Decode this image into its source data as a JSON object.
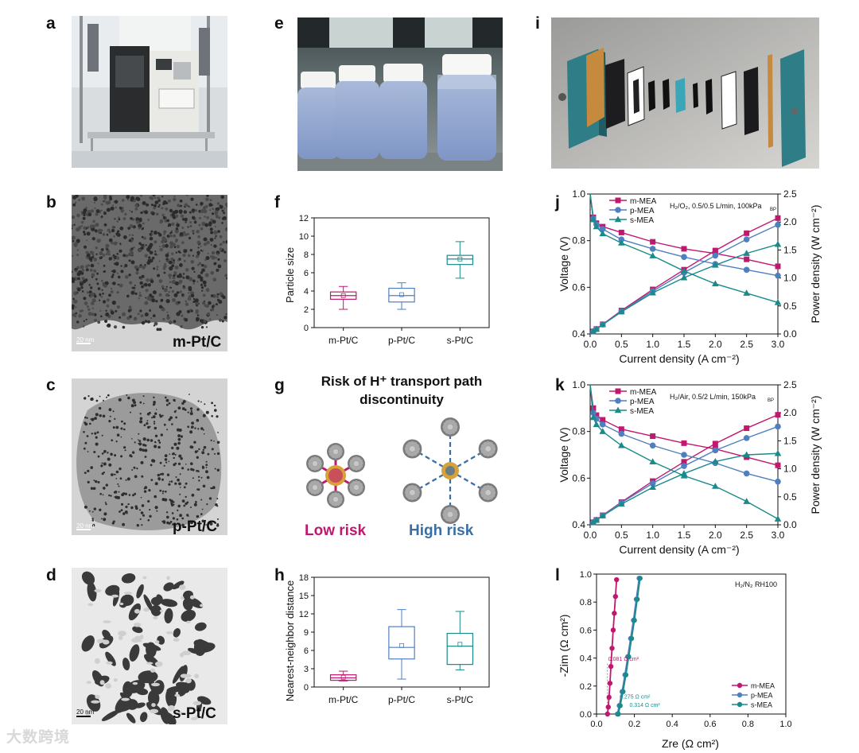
{
  "panel_labels": {
    "a": "a",
    "b": "b",
    "c": "c",
    "d": "d",
    "e": "e",
    "f": "f",
    "g": "g",
    "h": "h",
    "i": "i",
    "j": "j",
    "k": "k",
    "l": "l"
  },
  "micrographs": {
    "b": {
      "tag": "m-Pt/C",
      "scale": "20 nm"
    },
    "c": {
      "tag": "p-Pt/C",
      "scale": "20 nm"
    },
    "d": {
      "tag": "s-Pt/C",
      "scale": "20 nm"
    }
  },
  "schematic_g": {
    "title_line1": "Risk of H⁺ transport path",
    "title_line2": "discontinuity",
    "low_label": "Low risk",
    "high_label": "High risk",
    "low_color": "#c0176f",
    "high_color": "#3a6ea5"
  },
  "watermark": "大数跨境",
  "colors": {
    "m": "#c0176f",
    "p": "#4f7fbf",
    "s": "#1a8a8a"
  },
  "chart_data": [
    {
      "id": "f",
      "type": "box",
      "ylabel": "Particle size",
      "ylim": [
        0,
        12
      ],
      "yticks": [
        "0",
        "2",
        "4",
        "6",
        "8",
        "10",
        "12"
      ],
      "categories": [
        "m-Pt/C",
        "p-Pt/C",
        "s-Pt/C"
      ],
      "boxes": [
        {
          "q1": 3.1,
          "median": 3.5,
          "q3": 3.9,
          "mean": 3.5,
          "whisker_low": 2.0,
          "whisker_high": 4.5
        },
        {
          "q1": 2.8,
          "median": 3.5,
          "q3": 4.3,
          "mean": 3.6,
          "whisker_low": 2.0,
          "whisker_high": 4.9
        },
        {
          "q1": 6.9,
          "median": 7.5,
          "q3": 7.9,
          "mean": 7.5,
          "whisker_low": 5.4,
          "whisker_high": 9.4
        }
      ]
    },
    {
      "id": "h",
      "type": "box",
      "ylabel": "Nearest-neighbor distance",
      "ylim": [
        0,
        18
      ],
      "yticks": [
        "0",
        "3",
        "6",
        "9",
        "12",
        "15",
        "18"
      ],
      "categories": [
        "m-Pt/C",
        "p-Pt/C",
        "s-Pt/C"
      ],
      "boxes": [
        {
          "q1": 1.1,
          "median": 1.5,
          "q3": 2.0,
          "mean": 1.6,
          "whisker_low": 1.0,
          "whisker_high": 2.6
        },
        {
          "q1": 4.6,
          "median": 6.5,
          "q3": 9.9,
          "mean": 6.8,
          "whisker_low": 1.3,
          "whisker_high": 12.7
        },
        {
          "q1": 3.7,
          "median": 6.7,
          "q3": 8.8,
          "mean": 7.0,
          "whisker_low": 2.8,
          "whisker_high": 12.4
        }
      ]
    },
    {
      "id": "j",
      "type": "line",
      "annotation": "H₂/O₂, 0.5/0.5 L/min, 100kPa",
      "annotation_sub": "BP",
      "xlabel": "Current density (A cm⁻²)",
      "ylabel": "Voltage (V)",
      "y2label": "Power density (W cm⁻²)",
      "xlim": [
        0,
        3.0
      ],
      "ylim": [
        0.4,
        1.0
      ],
      "y2lim": [
        0,
        2.5
      ],
      "xticks": [
        "0.0",
        "0.5",
        "1.0",
        "1.5",
        "2.0",
        "2.5",
        "3.0"
      ],
      "yticks": [
        "0.4",
        "0.6",
        "0.8",
        "1.0"
      ],
      "y2ticks": [
        "0.0",
        "0.5",
        "1.0",
        "1.5",
        "2.0",
        "2.5"
      ],
      "x": [
        0.05,
        0.1,
        0.2,
        0.5,
        1.0,
        1.5,
        2.0,
        2.5,
        3.0
      ],
      "series": [
        {
          "name": "m-MEA",
          "key": "m",
          "marker": "square",
          "voltage": [
            0.9,
            0.875,
            0.86,
            0.835,
            0.795,
            0.765,
            0.745,
            0.72,
            0.69
          ],
          "power": [
            0.045,
            0.088,
            0.172,
            0.418,
            0.795,
            1.148,
            1.49,
            1.8,
            2.07
          ]
        },
        {
          "name": "p-MEA",
          "key": "p",
          "marker": "circle",
          "voltage": [
            0.895,
            0.87,
            0.85,
            0.805,
            0.765,
            0.73,
            0.7,
            0.675,
            0.65
          ],
          "power": [
            0.045,
            0.087,
            0.17,
            0.403,
            0.765,
            1.095,
            1.4,
            1.69,
            1.95
          ]
        },
        {
          "name": "s-MEA",
          "key": "s",
          "marker": "triangle",
          "voltage": [
            0.89,
            0.86,
            0.83,
            0.79,
            0.735,
            0.67,
            0.615,
            0.575,
            0.535
          ],
          "power": [
            0.045,
            0.086,
            0.166,
            0.395,
            0.735,
            1.005,
            1.23,
            1.44,
            1.6
          ]
        }
      ]
    },
    {
      "id": "k",
      "type": "line",
      "annotation": "H₂/Air, 0.5/2 L/min, 150kPa",
      "annotation_sub": "BP",
      "xlabel": "Current density (A cm⁻²)",
      "ylabel": "Voltage (V)",
      "y2label": "Power density (W cm⁻²)",
      "xlim": [
        0,
        3.0
      ],
      "ylim": [
        0.4,
        1.0
      ],
      "y2lim": [
        0,
        2.5
      ],
      "xticks": [
        "0.0",
        "0.5",
        "1.0",
        "1.5",
        "2.0",
        "2.5",
        "3.0"
      ],
      "yticks": [
        "0.4",
        "0.6",
        "0.8",
        "1.0"
      ],
      "y2ticks": [
        "0.0",
        "0.5",
        "1.0",
        "1.5",
        "2.0",
        "2.5"
      ],
      "x": [
        0.05,
        0.1,
        0.2,
        0.5,
        1.0,
        1.5,
        2.0,
        2.5,
        3.0
      ],
      "series": [
        {
          "name": "m-MEA",
          "key": "m",
          "marker": "square",
          "voltage": [
            0.9,
            0.87,
            0.85,
            0.81,
            0.78,
            0.75,
            0.725,
            0.69,
            0.655
          ],
          "power": [
            0.045,
            0.087,
            0.17,
            0.405,
            0.78,
            1.125,
            1.45,
            1.725,
            1.965
          ]
        },
        {
          "name": "p-MEA",
          "key": "p",
          "marker": "circle",
          "voltage": [
            0.88,
            0.855,
            0.83,
            0.79,
            0.74,
            0.7,
            0.665,
            0.62,
            0.585
          ],
          "power": [
            0.044,
            0.086,
            0.166,
            0.395,
            0.74,
            1.05,
            1.33,
            1.55,
            1.755
          ]
        },
        {
          "name": "s-MEA",
          "key": "s",
          "marker": "triangle",
          "voltage": [
            0.86,
            0.83,
            0.8,
            0.74,
            0.67,
            0.61,
            0.565,
            0.5,
            0.425
          ],
          "power": [
            0.043,
            0.083,
            0.16,
            0.37,
            0.67,
            0.915,
            1.13,
            1.25,
            1.275
          ]
        }
      ]
    },
    {
      "id": "l",
      "type": "scatter",
      "annotation": "H₂/N₂ RH100",
      "xlabel": "Zre (Ω cm²)",
      "ylabel": "-Zim (Ω cm²)",
      "xlim": [
        0,
        1.0
      ],
      "ylim": [
        0,
        1.0
      ],
      "xticks": [
        "0.0",
        "0.2",
        "0.4",
        "0.6",
        "0.8",
        "1.0"
      ],
      "yticks": [
        "0.0",
        "0.2",
        "0.4",
        "0.6",
        "0.8",
        "1.0"
      ],
      "series": [
        {
          "name": "m-MEA",
          "key": "m",
          "x": [
            0.058,
            0.062,
            0.066,
            0.071,
            0.076,
            0.082,
            0.088,
            0.094,
            0.1,
            0.106
          ],
          "y": [
            0.0,
            0.05,
            0.12,
            0.22,
            0.34,
            0.47,
            0.6,
            0.72,
            0.84,
            0.96
          ]
        },
        {
          "name": "p-MEA",
          "key": "p",
          "x": [
            0.11,
            0.12,
            0.135,
            0.15,
            0.165,
            0.18,
            0.195,
            0.21,
            0.225
          ],
          "y": [
            0.0,
            0.06,
            0.16,
            0.28,
            0.41,
            0.54,
            0.67,
            0.82,
            0.97
          ]
        },
        {
          "name": "s-MEA",
          "key": "s",
          "x": [
            0.115,
            0.125,
            0.14,
            0.155,
            0.17,
            0.185,
            0.2,
            0.215,
            0.23
          ],
          "y": [
            0.0,
            0.06,
            0.16,
            0.28,
            0.41,
            0.54,
            0.67,
            0.82,
            0.97
          ]
        }
      ],
      "resistances": [
        {
          "key": "m",
          "label": "0.081 Ω cm²"
        },
        {
          "key": "s",
          "label": "0.275 Ω cm²"
        },
        {
          "key": "s",
          "label": "0.314 Ω cm²"
        }
      ]
    }
  ]
}
